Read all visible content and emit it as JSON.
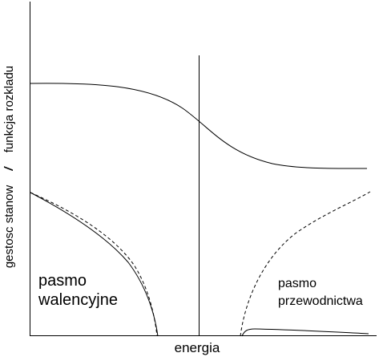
{
  "xlabel": "energia",
  "ylabel": {
    "left_part": "gestosc stanow",
    "separator": "/",
    "right_part": "funkcja rozkladu"
  },
  "valence_band_label": [
    "pasmo",
    "walencyjne"
  ],
  "conduction_band_label": [
    "pasmo",
    "przewodnictwa"
  ],
  "colors": {
    "line": "#000000",
    "background": "#ffffff"
  }
}
